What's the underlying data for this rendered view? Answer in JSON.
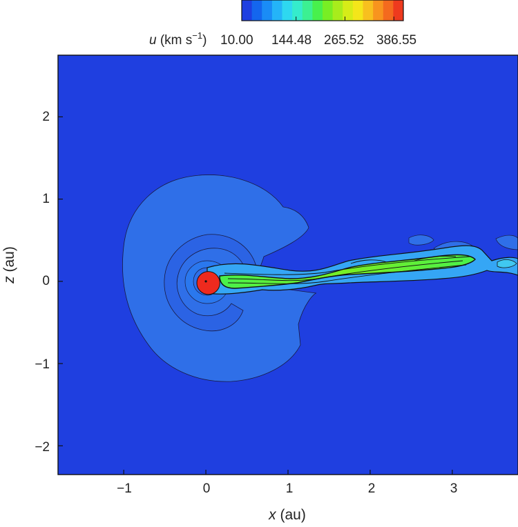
{
  "chart_data": {
    "type": "heatmap",
    "title": "",
    "xlabel": "x (au)",
    "ylabel": "z (au)",
    "xlabel_var": "x",
    "xlabel_unit": " (au)",
    "ylabel_var": "z",
    "ylabel_unit": " (au)",
    "xlim": [
      -1.8,
      3.8
    ],
    "ylim": [
      -2.35,
      2.75
    ],
    "xticks": [
      -1,
      0,
      1,
      2,
      3
    ],
    "xtick_labels": [
      "−1",
      "0",
      "1",
      "2",
      "3"
    ],
    "yticks": [
      -2,
      -1,
      0,
      1,
      2
    ],
    "ytick_labels": [
      "−2",
      "−1",
      "0",
      "1",
      "2"
    ],
    "colorbar": {
      "label_var": "u",
      "label_unit": " (km s",
      "label_exp": "−1",
      "label_close": ")",
      "ticks": [
        10.0,
        144.48,
        265.52,
        386.55
      ],
      "tick_labels": [
        "10.00",
        "144.48",
        "265.52",
        "386.55"
      ],
      "range": [
        10.0,
        410.0
      ],
      "colors": [
        "#1f3fe0",
        "#1466ee",
        "#1a8cf6",
        "#24b4f8",
        "#2ed8f0",
        "#35eccc",
        "#3cf092",
        "#48f04c",
        "#78ee24",
        "#a8ec1c",
        "#d6ec18",
        "#f4e61a",
        "#f8c01e",
        "#f8941e",
        "#f46a1e",
        "#ee3a1e"
      ]
    },
    "background_value": 10.0,
    "star": {
      "x": 0.03,
      "z": -0.02,
      "radius": 0.14,
      "value": 410
    },
    "inner_shell_value": 75,
    "outer_shell_value": 60,
    "tail_value": 230
  }
}
